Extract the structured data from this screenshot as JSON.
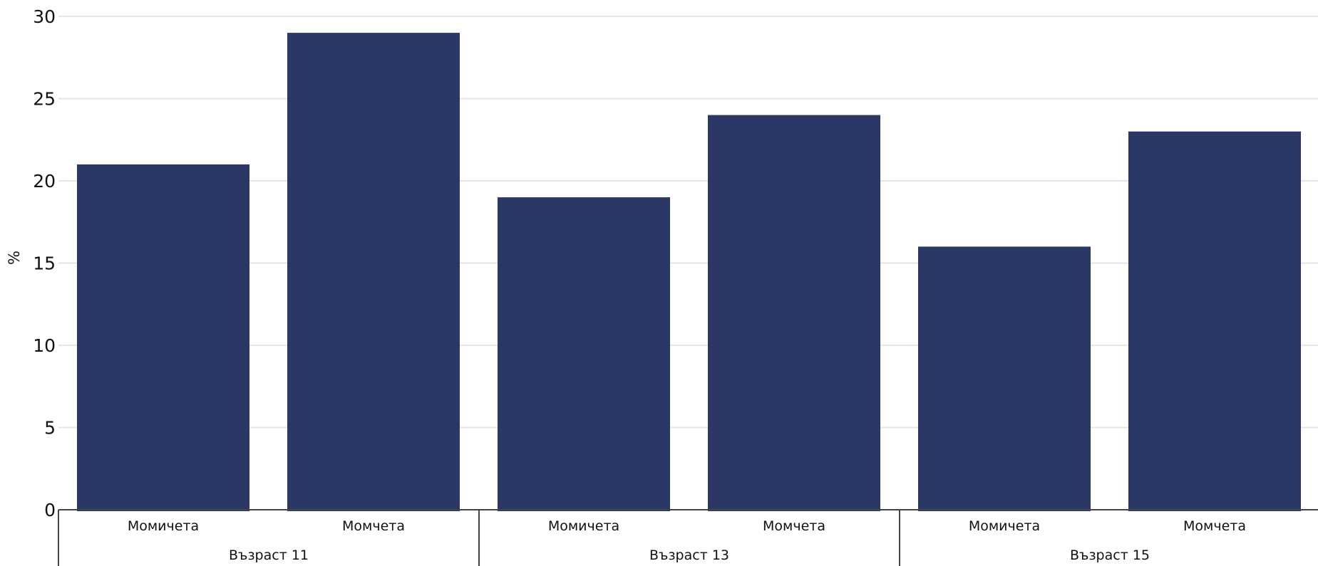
{
  "chart_data": {
    "type": "bar",
    "ylabel": "%",
    "ylim": [
      0,
      30
    ],
    "yticks": [
      "0",
      "5",
      "10",
      "15",
      "20",
      "25",
      "30"
    ],
    "grid": true,
    "bar_color": "#2b3765",
    "groups": [
      {
        "label": "Възраст 11",
        "categories": [
          "Момичета",
          "Момчета"
        ],
        "values": [
          21,
          29
        ]
      },
      {
        "label": "Възраст 13",
        "categories": [
          "Момичета",
          "Момчета"
        ],
        "values": [
          19,
          24
        ]
      },
      {
        "label": "Възраст 15",
        "categories": [
          "Момичета",
          "Момчета"
        ],
        "values": [
          16,
          23
        ]
      }
    ]
  }
}
